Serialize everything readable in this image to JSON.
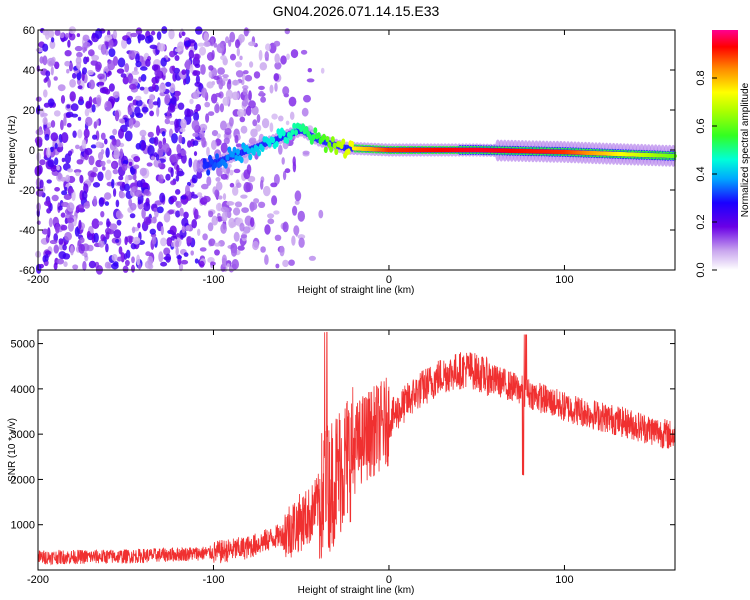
{
  "title": "GN04.2026.071.14.15.E33",
  "chart_data": [
    {
      "type": "heatmap",
      "xlabel": "Height of straight line (km)",
      "ylabel": "Frequency (Hz)",
      "xlim": [
        -200,
        163
      ],
      "ylim": [
        -60,
        60
      ],
      "xticks": [
        -200,
        -100,
        0,
        100
      ],
      "yticks": [
        -60,
        -40,
        -20,
        0,
        20,
        40,
        60
      ],
      "colorbar": {
        "label": "Normalized spectral amplitude",
        "range": [
          0,
          1
        ],
        "ticks": [
          "0.0",
          "0.2",
          "0.4",
          "0.6",
          "0.8"
        ],
        "tick_values": [
          0.0,
          0.2,
          0.4,
          0.6,
          0.8
        ]
      },
      "features": {
        "noise_region_x": [
          -200,
          -80
        ],
        "track": [
          {
            "x": -105,
            "freq": -8,
            "amp": 0.3
          },
          {
            "x": -95,
            "freq": -5,
            "amp": 0.35
          },
          {
            "x": -80,
            "freq": 0,
            "amp": 0.4
          },
          {
            "x": -65,
            "freq": 5,
            "amp": 0.45
          },
          {
            "x": -50,
            "freq": 10,
            "amp": 0.5
          },
          {
            "x": -40,
            "freq": 5,
            "amp": 0.55
          },
          {
            "x": -25,
            "freq": 1,
            "amp": 0.7
          },
          {
            "x": 0,
            "freq": 0,
            "amp": 0.9
          },
          {
            "x": 50,
            "freq": 0,
            "amp": 0.95
          },
          {
            "x": 100,
            "freq": -1,
            "amp": 0.9
          },
          {
            "x": 130,
            "freq": -2,
            "amp": 0.75
          },
          {
            "x": 163,
            "freq": -3,
            "amp": 0.6
          }
        ]
      }
    },
    {
      "type": "line",
      "xlabel": "Height of straight line (km)",
      "ylabel": "SNR (10 * v/v)",
      "xlim": [
        -200,
        163
      ],
      "ylim": [
        0,
        5300
      ],
      "xticks": [
        -200,
        -100,
        0,
        100
      ],
      "yticks": [
        1000,
        2000,
        3000,
        4000,
        5000
      ],
      "color": "#f03030",
      "envelope": [
        {
          "x": -200,
          "snr": 280
        },
        {
          "x": -150,
          "snr": 300
        },
        {
          "x": -100,
          "snr": 380
        },
        {
          "x": -80,
          "snr": 500
        },
        {
          "x": -60,
          "snr": 800
        },
        {
          "x": -45,
          "snr": 1200
        },
        {
          "x": -35,
          "snr": 1800
        },
        {
          "x": -25,
          "snr": 2400
        },
        {
          "x": -15,
          "snr": 2900
        },
        {
          "x": 0,
          "snr": 3300
        },
        {
          "x": 15,
          "snr": 3900
        },
        {
          "x": 30,
          "snr": 4300
        },
        {
          "x": 45,
          "snr": 4450
        },
        {
          "x": 60,
          "snr": 4200
        },
        {
          "x": 80,
          "snr": 3900
        },
        {
          "x": 100,
          "snr": 3600
        },
        {
          "x": 130,
          "snr": 3300
        },
        {
          "x": 163,
          "snr": 2950
        }
      ]
    }
  ]
}
